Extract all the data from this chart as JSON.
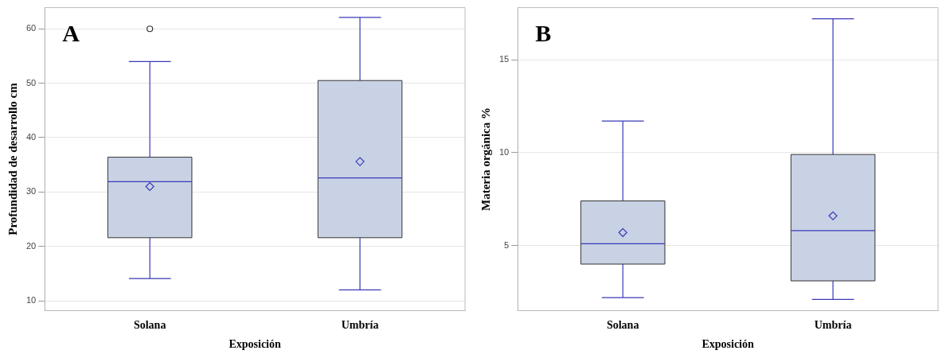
{
  "chart_data": [
    {
      "type": "box",
      "xlabel": "Exposición",
      "ylabel": "Profundidad de desarrollo cm",
      "annotations": [
        "A"
      ],
      "categories": [
        "Solana",
        "Umbría"
      ],
      "ylim": [
        8.2,
        63.9
      ],
      "yticks": [
        10,
        20,
        30,
        40,
        50,
        60
      ],
      "grid": "y",
      "legend": false,
      "series": [
        {
          "color": "#c8d2e4",
          "boxes": [
            {
              "low": 14.1,
              "q1": 21.6,
              "median": 31.9,
              "q3": 36.4,
              "high": 54.0,
              "mean": 31.0,
              "outliers": [
                60
              ]
            },
            {
              "low": 12.0,
              "q1": 21.6,
              "median": 32.6,
              "q3": 50.5,
              "high": 62.1,
              "mean": 35.6
            }
          ]
        }
      ]
    },
    {
      "type": "box",
      "xlabel": "Exposición",
      "ylabel": "Materia orgánica %",
      "annotations": [
        "B"
      ],
      "categories": [
        "Solana",
        "Umbría"
      ],
      "ylim": [
        1.5,
        17.8
      ],
      "yticks": [
        5,
        10,
        15
      ],
      "grid": "y",
      "legend": false,
      "series": [
        {
          "color": "#c8d2e4",
          "boxes": [
            {
              "low": 2.2,
              "q1": 4.0,
              "median": 5.1,
              "q3": 7.4,
              "high": 11.7,
              "mean": 5.7
            },
            {
              "low": 2.1,
              "q1": 3.1,
              "median": 5.8,
              "q3": 9.9,
              "high": 17.2,
              "mean": 6.6
            }
          ]
        }
      ]
    }
  ]
}
